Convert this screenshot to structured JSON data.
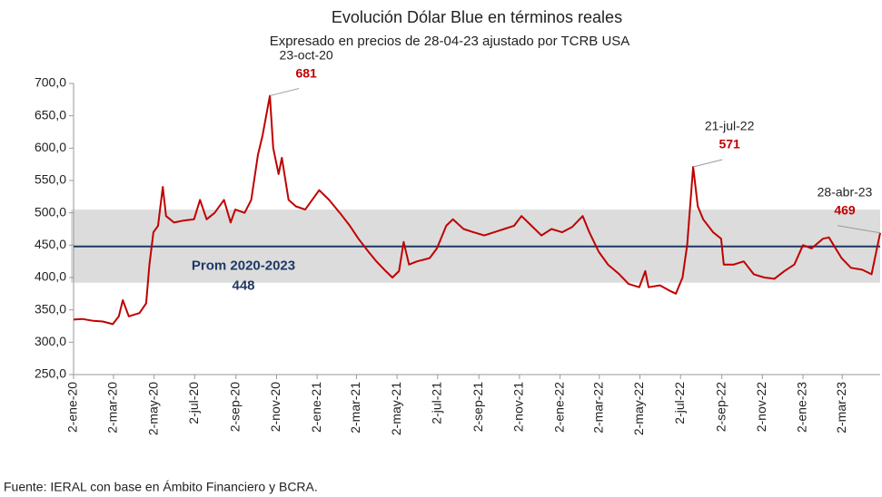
{
  "chart_data": {
    "type": "line",
    "title": "Evolución Dólar Blue en términos reales",
    "subtitle": "Expresado en precios de 28-04-23 ajustado por TCRB USA",
    "source": "Fuente: IERAL con base en Ámbito Financiero y BCRA.",
    "x": [
      "2020-01-02",
      "2020-01-15",
      "2020-02-01",
      "2020-02-15",
      "2020-03-01",
      "2020-03-10",
      "2020-03-16",
      "2020-03-25",
      "2020-04-10",
      "2020-04-20",
      "2020-04-25",
      "2020-05-01",
      "2020-05-08",
      "2020-05-15",
      "2020-05-20",
      "2020-06-01",
      "2020-06-15",
      "2020-07-01",
      "2020-07-10",
      "2020-07-20",
      "2020-08-01",
      "2020-08-15",
      "2020-08-25",
      "2020-09-01",
      "2020-09-15",
      "2020-09-25",
      "2020-10-05",
      "2020-10-12",
      "2020-10-23",
      "2020-10-28",
      "2020-11-05",
      "2020-11-10",
      "2020-11-20",
      "2020-12-01",
      "2020-12-15",
      "2021-01-05",
      "2021-01-20",
      "2021-02-05",
      "2021-02-20",
      "2021-03-05",
      "2021-03-20",
      "2021-04-01",
      "2021-04-15",
      "2021-04-25",
      "2021-05-05",
      "2021-05-12",
      "2021-05-20",
      "2021-06-01",
      "2021-06-20",
      "2021-07-01",
      "2021-07-15",
      "2021-07-25",
      "2021-08-10",
      "2021-08-25",
      "2021-09-10",
      "2021-09-25",
      "2021-10-10",
      "2021-10-25",
      "2021-11-05",
      "2021-11-20",
      "2021-12-05",
      "2021-12-20",
      "2022-01-05",
      "2022-01-20",
      "2022-02-05",
      "2022-02-15",
      "2022-03-01",
      "2022-03-15",
      "2022-04-01",
      "2022-04-15",
      "2022-05-01",
      "2022-05-10",
      "2022-05-15",
      "2022-06-01",
      "2022-06-15",
      "2022-06-25",
      "2022-07-05",
      "2022-07-12",
      "2022-07-21",
      "2022-07-28",
      "2022-08-05",
      "2022-08-20",
      "2022-09-01",
      "2022-09-05",
      "2022-09-20",
      "2022-10-05",
      "2022-10-20",
      "2022-11-05",
      "2022-11-20",
      "2022-12-05",
      "2022-12-20",
      "2023-01-02",
      "2023-01-15",
      "2023-02-01",
      "2023-02-10",
      "2023-03-01",
      "2023-03-15",
      "2023-04-01",
      "2023-04-15",
      "2023-04-28"
    ],
    "series": [
      {
        "color": "#c00000",
        "values": [
          335,
          336,
          333,
          332,
          328,
          340,
          365,
          340,
          345,
          360,
          420,
          470,
          480,
          540,
          495,
          485,
          488,
          490,
          520,
          490,
          500,
          520,
          485,
          505,
          500,
          520,
          590,
          620,
          681,
          600,
          560,
          585,
          520,
          510,
          505,
          535,
          520,
          500,
          480,
          460,
          440,
          425,
          410,
          400,
          410,
          455,
          420,
          425,
          430,
          445,
          480,
          490,
          475,
          470,
          465,
          470,
          475,
          480,
          495,
          480,
          465,
          475,
          470,
          478,
          495,
          470,
          440,
          420,
          405,
          390,
          385,
          410,
          385,
          388,
          380,
          375,
          400,
          450,
          571,
          510,
          490,
          470,
          460,
          420,
          420,
          425,
          405,
          400,
          398,
          410,
          420,
          450,
          445,
          460,
          462,
          430,
          415,
          412,
          405,
          469
        ]
      }
    ],
    "band": {
      "color": "#dcdcdc",
      "range": [
        392,
        505
      ]
    },
    "mean": {
      "label": "Prom 2020-2023",
      "value": 448,
      "color": "#1f3864"
    },
    "annotations": [
      {
        "label": "23-oct-20",
        "x": "2020-10-23",
        "value": 681
      },
      {
        "label": "21-jul-22",
        "x": "2022-07-21",
        "value": 571
      },
      {
        "label": "28-abr-23",
        "x": "2023-04-28",
        "value": 469
      }
    ],
    "xlim": [
      "2020-01-02",
      "2023-04-28"
    ],
    "xticks": [
      {
        "value": "2020-01-02",
        "label": "2-ene-20"
      },
      {
        "value": "2020-03-02",
        "label": "2-mar-20"
      },
      {
        "value": "2020-05-02",
        "label": "2-may-20"
      },
      {
        "value": "2020-07-02",
        "label": "2-jul-20"
      },
      {
        "value": "2020-09-02",
        "label": "2-sep-20"
      },
      {
        "value": "2020-11-02",
        "label": "2-nov-20"
      },
      {
        "value": "2021-01-02",
        "label": "2-ene-21"
      },
      {
        "value": "2021-03-02",
        "label": "2-mar-21"
      },
      {
        "value": "2021-05-02",
        "label": "2-may-21"
      },
      {
        "value": "2021-07-02",
        "label": "2-jul-21"
      },
      {
        "value": "2021-09-02",
        "label": "2-sep-21"
      },
      {
        "value": "2021-11-02",
        "label": "2-nov-21"
      },
      {
        "value": "2022-01-02",
        "label": "2-ene-22"
      },
      {
        "value": "2022-03-02",
        "label": "2-mar-22"
      },
      {
        "value": "2022-05-02",
        "label": "2-may-22"
      },
      {
        "value": "2022-07-02",
        "label": "2-jul-22"
      },
      {
        "value": "2022-09-02",
        "label": "2-sep-22"
      },
      {
        "value": "2022-11-02",
        "label": "2-nov-22"
      },
      {
        "value": "2023-01-02",
        "label": "2-ene-23"
      },
      {
        "value": "2023-03-02",
        "label": "2-mar-23"
      }
    ],
    "ylim": [
      250,
      700
    ],
    "yticks": [
      {
        "value": 250,
        "label": "250,0"
      },
      {
        "value": 300,
        "label": "300,0"
      },
      {
        "value": 350,
        "label": "350,0"
      },
      {
        "value": 400,
        "label": "400,0"
      },
      {
        "value": 450,
        "label": "450,0"
      },
      {
        "value": 500,
        "label": "500,0"
      },
      {
        "value": 550,
        "label": "550,0"
      },
      {
        "value": 600,
        "label": "600,0"
      },
      {
        "value": 650,
        "label": "650,0"
      },
      {
        "value": 700,
        "label": "700,0"
      }
    ]
  }
}
